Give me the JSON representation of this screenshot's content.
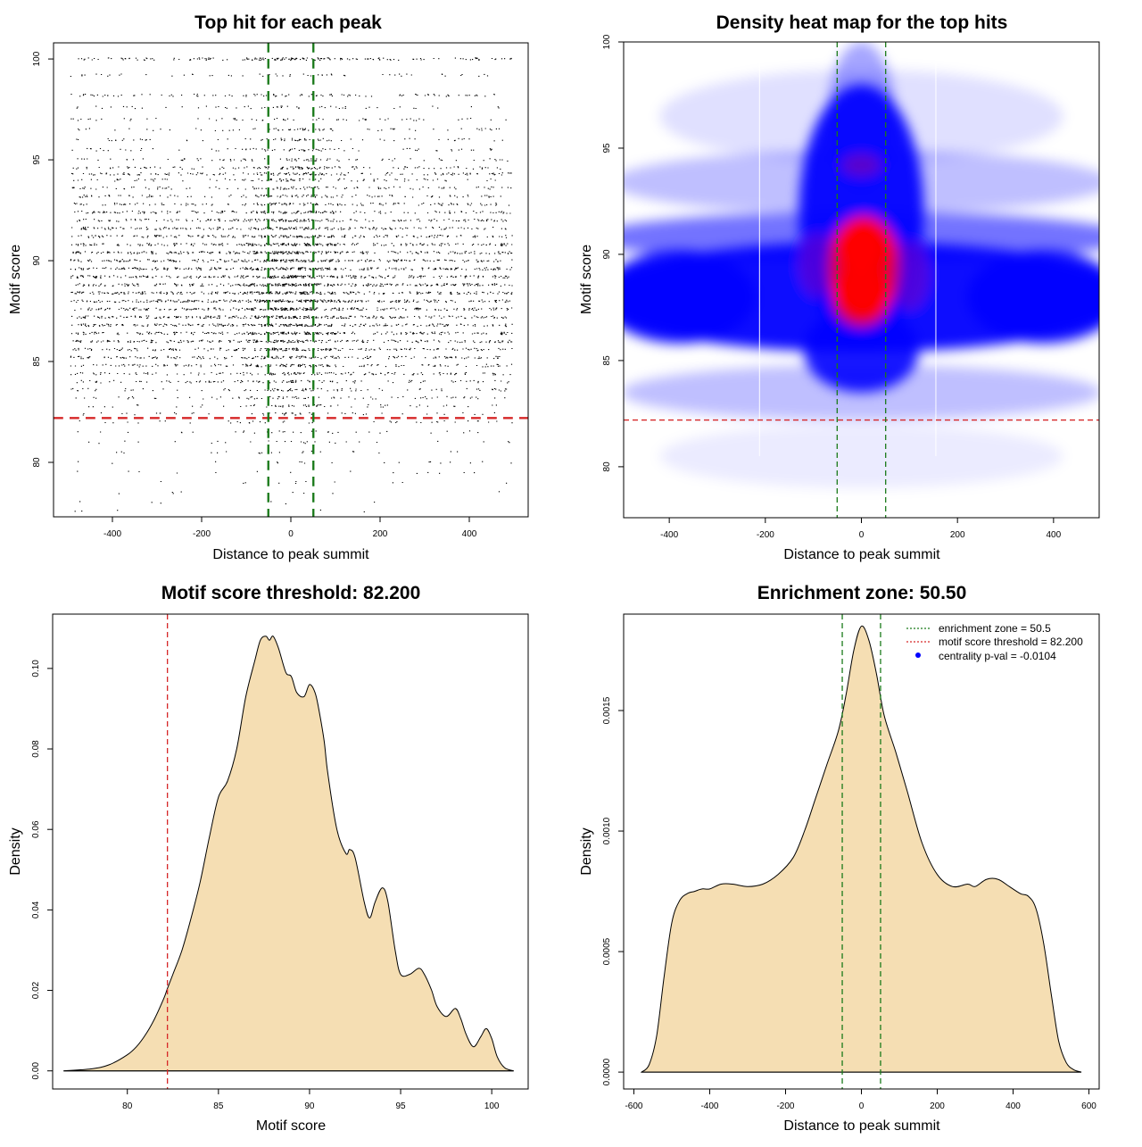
{
  "chart_data": [
    {
      "type": "scatter",
      "title": "Top hit for each peak",
      "xlabel": "Distance to peak summit",
      "ylabel": "Motif score",
      "xlim": [
        -532,
        532
      ],
      "ylim": [
        77.3,
        100.8
      ],
      "xticks": [
        -400,
        -200,
        0,
        200,
        400
      ],
      "yticks": [
        80,
        85,
        90,
        95,
        100
      ],
      "xtick_labels": [
        "-400",
        "-200",
        "0",
        "200",
        "400"
      ],
      "ytick_labels": [
        "80",
        "85",
        "90",
        "95",
        "100"
      ],
      "points_description": "approx. 15000 points, x uniform in [-495, 495], y concentrated between 84 and 92 with denser center near x=0",
      "hlines": [
        {
          "y": 82.2,
          "color": "#d62728",
          "style": "dashed"
        }
      ],
      "vlines": [
        {
          "x": -50.5,
          "color": "#1a7a1a",
          "style": "dashed"
        },
        {
          "x": 50.5,
          "color": "#1a7a1a",
          "style": "dashed"
        }
      ],
      "score_levels": [
        100,
        99.2,
        98.2,
        97.6,
        97.0,
        96.5,
        96.0,
        95.5,
        95.0,
        94.6,
        94.3,
        94.0,
        93.6,
        93.2,
        92.8,
        92.4,
        92.0,
        91.6,
        91.2,
        90.8,
        90.4,
        90.0,
        89.6,
        89.2,
        88.8,
        88.4,
        88.0,
        87.6,
        87.2,
        86.8,
        86.4,
        86.0,
        85.6,
        85.2,
        84.8,
        84.4,
        84.0,
        83.6,
        83.2,
        82.8,
        82.4,
        82.0,
        81.5,
        81.0,
        80.5,
        80.0,
        79.5,
        79.0,
        78.5,
        78.0,
        77.6
      ],
      "score_level_weights": [
        2.5,
        0.8,
        1.5,
        0.8,
        0.9,
        1.0,
        1.0,
        1.1,
        1.2,
        1.8,
        2.2,
        1.4,
        1.6,
        1.7,
        2.0,
        2.4,
        2.6,
        2.8,
        3.0,
        3.4,
        3.8,
        3.6,
        3.9,
        4.0,
        4.2,
        4.1,
        4.3,
        4.0,
        3.9,
        3.7,
        3.5,
        3.2,
        3.0,
        2.6,
        2.3,
        2.0,
        1.6,
        1.3,
        1.1,
        0.9,
        0.7,
        0.55,
        0.45,
        0.38,
        0.32,
        0.25,
        0.2,
        0.16,
        0.12,
        0.09,
        0.07
      ],
      "center_boost": 1.8
    },
    {
      "type": "heatmap",
      "title": "Density heat map for the top hits",
      "xlabel": "Distance to peak summit",
      "ylabel": "Motif score",
      "xlim": [
        -495,
        495
      ],
      "ylim": [
        77.6,
        100.0
      ],
      "xticks": [
        -400,
        -200,
        0,
        200,
        400
      ],
      "yticks": [
        80,
        85,
        90,
        95,
        100
      ],
      "xtick_labels": [
        "-400",
        "-200",
        "0",
        "200",
        "400"
      ],
      "ytick_labels": [
        "80",
        "85",
        "90",
        "95",
        "100"
      ],
      "colors": {
        "low": "#ffffff",
        "mid": "#0000ff",
        "high": "#ff0000"
      },
      "density_hotspot": {
        "x": 0,
        "y": 89.3
      },
      "hlines": [
        {
          "y": 82.2,
          "color": "#d62728",
          "style": "dashed"
        }
      ],
      "vlines": [
        {
          "x": -50.5,
          "color": "#1a7a1a",
          "style": "dashed"
        },
        {
          "x": 50.5,
          "color": "#1a7a1a",
          "style": "dashed"
        }
      ]
    },
    {
      "type": "area",
      "title": "Motif score threshold: 82.200",
      "xlabel": "Motif score",
      "ylabel": "Density",
      "xlim": [
        75.9,
        102.0
      ],
      "ylim": [
        -0.0045,
        0.1135
      ],
      "xticks": [
        80,
        85,
        90,
        95,
        100
      ],
      "yticks": [
        0.0,
        0.02,
        0.04,
        0.06,
        0.08,
        0.1
      ],
      "xtick_labels": [
        "80",
        "85",
        "90",
        "95",
        "100"
      ],
      "ytick_labels": [
        "0.00",
        "0.02",
        "0.04",
        "0.06",
        "0.08",
        "0.10"
      ],
      "fill": "#f5deb3",
      "x": [
        76.5,
        78.0,
        79.0,
        80.0,
        80.5,
        81.0,
        81.5,
        82.0,
        82.2,
        82.5,
        83.0,
        83.5,
        84.0,
        84.5,
        85.0,
        85.5,
        86.0,
        86.5,
        87.0,
        87.3,
        87.6,
        87.8,
        88.0,
        88.3,
        88.7,
        89.0,
        89.3,
        89.7,
        90.0,
        90.3,
        90.5,
        90.8,
        91.0,
        91.5,
        92.0,
        92.2,
        92.5,
        93.0,
        93.3,
        93.6,
        94.0,
        94.3,
        94.7,
        95.0,
        95.5,
        96.0,
        96.3,
        96.7,
        97.0,
        97.5,
        98.0,
        98.3,
        98.6,
        99.0,
        99.4,
        99.7,
        100.0,
        100.3,
        100.7,
        101.2
      ],
      "values": [
        0.0,
        0.0005,
        0.0015,
        0.004,
        0.006,
        0.009,
        0.013,
        0.018,
        0.0205,
        0.024,
        0.03,
        0.038,
        0.047,
        0.058,
        0.068,
        0.072,
        0.08,
        0.093,
        0.102,
        0.107,
        0.108,
        0.107,
        0.108,
        0.105,
        0.099,
        0.098,
        0.094,
        0.093,
        0.096,
        0.094,
        0.09,
        0.082,
        0.074,
        0.06,
        0.054,
        0.055,
        0.053,
        0.042,
        0.038,
        0.042,
        0.0455,
        0.042,
        0.03,
        0.024,
        0.024,
        0.0255,
        0.024,
        0.02,
        0.016,
        0.0135,
        0.0155,
        0.013,
        0.009,
        0.006,
        0.0085,
        0.0105,
        0.008,
        0.0035,
        0.0008,
        0.0
      ],
      "vlines": [
        {
          "x": 82.2,
          "color": "#d62728",
          "style": "dashed"
        }
      ]
    },
    {
      "type": "area",
      "title": "Enrichment zone: 50.50",
      "xlabel": "Distance to peak summit",
      "ylabel": "Density",
      "xlim": [
        -627,
        627
      ],
      "ylim": [
        -7e-05,
        0.0019
      ],
      "xticks": [
        -600,
        -400,
        -200,
        0,
        200,
        400,
        600
      ],
      "yticks": [
        0.0,
        0.0005,
        0.001,
        0.0015
      ],
      "xtick_labels": [
        "-600",
        "-400",
        "-200",
        "0",
        "200",
        "400",
        "600"
      ],
      "ytick_labels": [
        "0.0000",
        "0.0005",
        "0.0010",
        "0.0015"
      ],
      "fill": "#f5deb3",
      "x": [
        -580,
        -560,
        -540,
        -520,
        -500,
        -480,
        -460,
        -440,
        -420,
        -400,
        -370,
        -340,
        -300,
        -260,
        -220,
        -180,
        -150,
        -120,
        -90,
        -60,
        -40,
        -20,
        0,
        20,
        40,
        60,
        90,
        120,
        160,
        200,
        240,
        280,
        300,
        330,
        360,
        390,
        420,
        440,
        460,
        480,
        500,
        520,
        540,
        560,
        580
      ],
      "values": [
        0.0,
        3e-05,
        0.00015,
        0.0004,
        0.00062,
        0.00071,
        0.00074,
        0.00075,
        0.00076,
        0.00076,
        0.00078,
        0.00078,
        0.00077,
        0.00078,
        0.00082,
        0.00089,
        0.001,
        0.00114,
        0.00128,
        0.00142,
        0.00157,
        0.00175,
        0.00185,
        0.00179,
        0.00165,
        0.00148,
        0.00133,
        0.00117,
        0.00095,
        0.00082,
        0.00077,
        0.00078,
        0.00077,
        0.0008,
        0.0008,
        0.00077,
        0.00074,
        0.00073,
        0.00068,
        0.00054,
        0.00033,
        0.00013,
        4e-05,
        1e-05,
        0.0
      ],
      "vlines": [
        {
          "x": -50.5,
          "color": "#1a7a1a",
          "style": "dashed"
        },
        {
          "x": 50.5,
          "color": "#1a7a1a",
          "style": "dashed"
        }
      ],
      "legend": {
        "placement": "top-right",
        "entries": [
          {
            "label": "enrichment zone = 50.5",
            "color": "#1a7a1a",
            "style": "dotted-line"
          },
          {
            "label": "motif score threshold = 82.200",
            "color": "#d62728",
            "style": "dotted-line"
          },
          {
            "label": "centrality p-val = -0.0104",
            "color": "#0000ff",
            "style": "point"
          }
        ]
      }
    }
  ]
}
